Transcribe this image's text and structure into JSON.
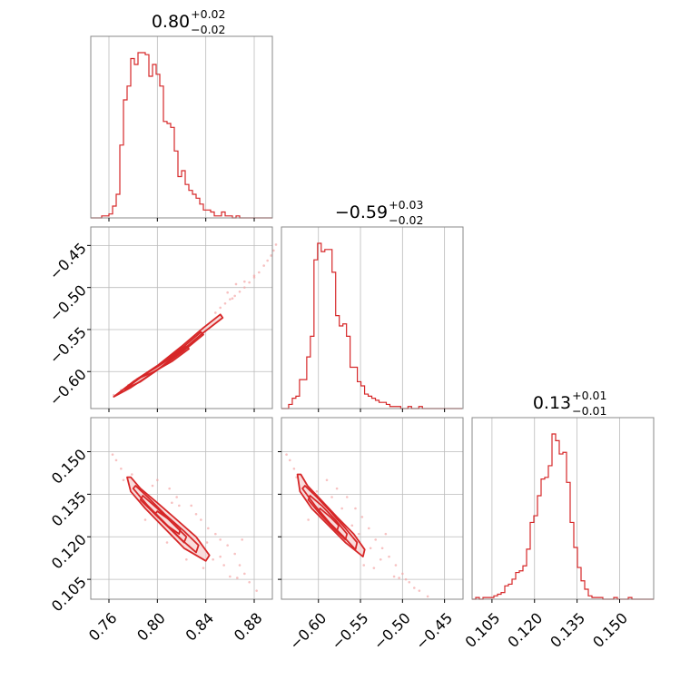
{
  "colors": {
    "accent": "#d62728",
    "scatter": "#f4a6a6",
    "fill": "#f5c6c6",
    "grid": "#bbbbbb",
    "frame": "#888888",
    "text": "#000000"
  },
  "chart_data": {
    "type": "corner",
    "parameters": [
      {
        "title": {
          "median": "0.80",
          "plus": "+0.02",
          "minus": "−0.02"
        },
        "range": [
          0.745,
          0.895
        ],
        "ticks": [
          0.76,
          0.8,
          0.84,
          0.88
        ],
        "tick_labels": [
          "0.76",
          "0.80",
          "0.84",
          "0.88"
        ]
      },
      {
        "title": {
          "median": "−0.59",
          "plus": "+0.03",
          "minus": "−0.02"
        },
        "range": [
          -0.644,
          -0.428
        ],
        "ticks": [
          -0.6,
          -0.55,
          -0.5,
          -0.45
        ],
        "tick_labels": [
          "−0.60",
          "−0.55",
          "−0.50",
          "−0.45"
        ]
      },
      {
        "title": {
          "median": "0.13",
          "plus": "+0.01",
          "minus": "−0.01"
        },
        "range": [
          0.098,
          0.162
        ],
        "ticks": [
          0.105,
          0.12,
          0.135,
          0.15
        ],
        "tick_labels": [
          "0.105",
          "0.120",
          "0.135",
          "0.150"
        ]
      }
    ],
    "histograms": [
      {
        "param": 0,
        "bin_start": 0.745,
        "bin_width": 0.003,
        "counts": [
          0,
          0,
          0,
          1,
          1,
          2,
          6,
          12,
          37,
          60,
          67,
          81,
          78,
          84,
          84,
          83,
          72,
          78,
          73,
          67,
          49,
          48,
          46,
          34,
          21,
          24,
          17,
          14,
          12,
          10,
          7,
          4,
          4,
          3,
          1,
          1,
          3,
          1,
          1,
          0,
          1,
          0,
          0,
          0,
          0,
          0,
          0,
          0,
          0,
          0
        ]
      },
      {
        "param": 1,
        "bin_start": -0.644,
        "bin_width": 0.0043,
        "counts": [
          0,
          0,
          2,
          5,
          6,
          14,
          14,
          25,
          35,
          72,
          80,
          76,
          77,
          77,
          66,
          45,
          40,
          41,
          35,
          20,
          20,
          13,
          11,
          7,
          6,
          5,
          4,
          3,
          3,
          2,
          1,
          1,
          1,
          0,
          0,
          1,
          0,
          0,
          1,
          0,
          0,
          0,
          0,
          0,
          0,
          0,
          0,
          0,
          0,
          0
        ]
      },
      {
        "param": 2,
        "bin_start": 0.098,
        "bin_width": 0.00128,
        "counts": [
          0,
          1,
          0,
          1,
          1,
          1,
          2,
          3,
          4,
          8,
          9,
          12,
          16,
          17,
          20,
          30,
          46,
          50,
          62,
          72,
          73,
          80,
          99,
          95,
          87,
          88,
          70,
          46,
          31,
          19,
          11,
          6,
          2,
          1,
          1,
          1,
          0,
          0,
          0,
          1,
          0,
          0,
          0,
          1,
          0,
          0,
          0,
          0,
          0,
          0
        ]
      }
    ],
    "pair_plots": [
      {
        "x_param": 0,
        "y_param": 1,
        "contours": [
          [
            [
              0.764,
              -0.63
            ],
            [
              0.78,
              -0.612
            ],
            [
              0.8,
              -0.593
            ],
            [
              0.82,
              -0.57
            ],
            [
              0.838,
              -0.548
            ],
            [
              0.852,
              -0.532
            ],
            [
              0.854,
              -0.536
            ],
            [
              0.836,
              -0.556
            ],
            [
              0.818,
              -0.578
            ],
            [
              0.798,
              -0.6
            ],
            [
              0.778,
              -0.619
            ]
          ],
          [
            [
              0.773,
              -0.621
            ],
            [
              0.79,
              -0.603
            ],
            [
              0.806,
              -0.588
            ],
            [
              0.822,
              -0.57
            ],
            [
              0.836,
              -0.553
            ],
            [
              0.838,
              -0.556
            ],
            [
              0.822,
              -0.575
            ],
            [
              0.804,
              -0.594
            ],
            [
              0.786,
              -0.612
            ]
          ],
          [
            [
              0.783,
              -0.609
            ],
            [
              0.798,
              -0.596
            ],
            [
              0.812,
              -0.583
            ],
            [
              0.824,
              -0.57
            ],
            [
              0.826,
              -0.573
            ],
            [
              0.812,
              -0.588
            ],
            [
              0.796,
              -0.601
            ]
          ]
        ],
        "scatter": [
          [
            0.764,
            -0.628
          ],
          [
            0.77,
            -0.622
          ],
          [
            0.776,
            -0.616
          ],
          [
            0.848,
            -0.53
          ],
          [
            0.852,
            -0.524
          ],
          [
            0.856,
            -0.519
          ],
          [
            0.86,
            -0.514
          ],
          [
            0.864,
            -0.51
          ],
          [
            0.868,
            -0.505
          ],
          [
            0.872,
            -0.5
          ],
          [
            0.876,
            -0.494
          ],
          [
            0.88,
            -0.488
          ],
          [
            0.884,
            -0.482
          ],
          [
            0.888,
            -0.474
          ],
          [
            0.891,
            -0.468
          ],
          [
            0.894,
            -0.462
          ],
          [
            0.896,
            -0.456
          ],
          [
            0.898,
            -0.449
          ],
          [
            0.88,
            -0.486
          ],
          [
            0.865,
            -0.496
          ],
          [
            0.858,
            -0.506
          ],
          [
            0.872,
            -0.493
          ],
          [
            0.862,
            -0.513
          ]
        ]
      },
      {
        "x_param": 0,
        "y_param": 2,
        "contours": [
          [
            [
              0.775,
              0.141
            ],
            [
              0.778,
              0.136
            ],
            [
              0.79,
              0.13
            ],
            [
              0.806,
              0.123
            ],
            [
              0.822,
              0.116
            ],
            [
              0.84,
              0.1115
            ],
            [
              0.843,
              0.1135
            ],
            [
              0.832,
              0.12
            ],
            [
              0.816,
              0.126
            ],
            [
              0.8,
              0.132
            ],
            [
              0.786,
              0.137
            ],
            [
              0.778,
              0.141
            ]
          ],
          [
            [
              0.78,
              0.137
            ],
            [
              0.792,
              0.131
            ],
            [
              0.806,
              0.125
            ],
            [
              0.82,
              0.119
            ],
            [
              0.832,
              0.1145
            ],
            [
              0.834,
              0.117
            ],
            [
              0.822,
              0.122
            ],
            [
              0.806,
              0.128
            ],
            [
              0.792,
              0.134
            ],
            [
              0.782,
              0.138
            ]
          ],
          [
            [
              0.786,
              0.133
            ],
            [
              0.798,
              0.128
            ],
            [
              0.81,
              0.123
            ],
            [
              0.822,
              0.118
            ],
            [
              0.824,
              0.12
            ],
            [
              0.812,
              0.125
            ],
            [
              0.8,
              0.13
            ],
            [
              0.788,
              0.1345
            ]
          ],
          [
            [
              0.798,
              0.128
            ],
            [
              0.808,
              0.124
            ],
            [
              0.818,
              0.121
            ],
            [
              0.819,
              0.123
            ],
            [
              0.81,
              0.126
            ],
            [
              0.8,
              0.129
            ]
          ]
        ],
        "scatter": [
          [
            0.763,
            0.149
          ],
          [
            0.766,
            0.147
          ],
          [
            0.77,
            0.144
          ],
          [
            0.772,
            0.14
          ],
          [
            0.8,
            0.14
          ],
          [
            0.81,
            0.137
          ],
          [
            0.816,
            0.134
          ],
          [
            0.828,
            0.131
          ],
          [
            0.836,
            0.126
          ],
          [
            0.842,
            0.123
          ],
          [
            0.848,
            0.121
          ],
          [
            0.852,
            0.119
          ],
          [
            0.858,
            0.117
          ],
          [
            0.864,
            0.114
          ],
          [
            0.868,
            0.11
          ],
          [
            0.872,
            0.107
          ],
          [
            0.876,
            0.104
          ],
          [
            0.882,
            0.101
          ],
          [
            0.86,
            0.106
          ],
          [
            0.846,
            0.112
          ],
          [
            0.838,
            0.109
          ],
          [
            0.826,
            0.117
          ],
          [
            0.832,
            0.128
          ],
          [
            0.818,
            0.131
          ],
          [
            0.852,
            0.113
          ],
          [
            0.87,
            0.119
          ],
          [
            0.79,
            0.126
          ],
          [
            0.796,
            0.138
          ],
          [
            0.808,
            0.118
          ],
          [
            0.824,
            0.112
          ],
          [
            0.866,
            0.1055
          ],
          [
            0.779,
            0.142
          ],
          [
            0.841,
            0.118
          ],
          [
            0.855,
            0.11
          ],
          [
            0.812,
            0.132
          ]
        ]
      },
      {
        "x_param": 1,
        "y_param": 2,
        "contours": [
          [
            [
              -0.625,
              0.142
            ],
            [
              -0.622,
              0.136
            ],
            [
              -0.608,
              0.13
            ],
            [
              -0.588,
              0.124
            ],
            [
              -0.568,
              0.118
            ],
            [
              -0.547,
              0.113
            ],
            [
              -0.545,
              0.1155
            ],
            [
              -0.558,
              0.121
            ],
            [
              -0.578,
              0.127
            ],
            [
              -0.597,
              0.133
            ],
            [
              -0.613,
              0.138
            ],
            [
              -0.621,
              0.142
            ]
          ],
          [
            [
              -0.619,
              0.137
            ],
            [
              -0.604,
              0.131
            ],
            [
              -0.587,
              0.125
            ],
            [
              -0.57,
              0.12
            ],
            [
              -0.556,
              0.1155
            ],
            [
              -0.554,
              0.118
            ],
            [
              -0.568,
              0.123
            ],
            [
              -0.586,
              0.129
            ],
            [
              -0.602,
              0.134
            ],
            [
              -0.616,
              0.138
            ]
          ],
          [
            [
              -0.612,
              0.133
            ],
            [
              -0.598,
              0.128
            ],
            [
              -0.582,
              0.123
            ],
            [
              -0.568,
              0.119
            ],
            [
              -0.566,
              0.121
            ],
            [
              -0.58,
              0.126
            ],
            [
              -0.596,
              0.131
            ],
            [
              -0.61,
              0.1345
            ]
          ],
          [
            [
              -0.6,
              0.129
            ],
            [
              -0.588,
              0.125
            ],
            [
              -0.578,
              0.122
            ],
            [
              -0.576,
              0.124
            ],
            [
              -0.586,
              0.127
            ],
            [
              -0.598,
              0.13
            ]
          ]
        ],
        "scatter": [
          [
            -0.638,
            0.149
          ],
          [
            -0.634,
            0.147
          ],
          [
            -0.629,
            0.144
          ],
          [
            -0.626,
            0.141
          ],
          [
            -0.59,
            0.14
          ],
          [
            -0.578,
            0.137
          ],
          [
            -0.566,
            0.134
          ],
          [
            -0.556,
            0.13
          ],
          [
            -0.548,
            0.127
          ],
          [
            -0.54,
            0.123
          ],
          [
            -0.532,
            0.119
          ],
          [
            -0.524,
            0.116
          ],
          [
            -0.516,
            0.113
          ],
          [
            -0.508,
            0.11
          ],
          [
            -0.5,
            0.107
          ],
          [
            -0.492,
            0.104
          ],
          [
            -0.48,
            0.101
          ],
          [
            -0.47,
            0.099
          ],
          [
            -0.51,
            0.106
          ],
          [
            -0.526,
            0.112
          ],
          [
            -0.538,
            0.116
          ],
          [
            -0.546,
            0.11
          ],
          [
            -0.56,
            0.124
          ],
          [
            -0.572,
            0.13
          ],
          [
            -0.52,
            0.121
          ],
          [
            -0.496,
            0.105
          ],
          [
            -0.584,
            0.134
          ],
          [
            -0.602,
            0.136
          ],
          [
            -0.612,
            0.126
          ],
          [
            -0.552,
            0.121
          ],
          [
            -0.534,
            0.109
          ],
          [
            -0.504,
            0.1055
          ],
          [
            -0.486,
            0.102
          ]
        ]
      }
    ],
    "grid": true
  }
}
